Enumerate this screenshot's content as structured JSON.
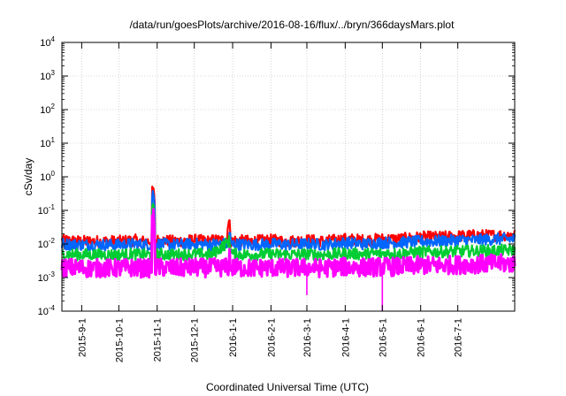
{
  "chart_data": {
    "type": "line",
    "title": "/data/run/goesPlots/archive/2016-08-16/flux/../bryn/366daysMars.plot",
    "xlabel": "Coordinated Universal Time (UTC)",
    "ylabel": "cSv/day",
    "yscale": "log",
    "ylim": [
      0.0001,
      10000
    ],
    "xlim": [
      "2015-08-16",
      "2016-08-16"
    ],
    "grid": true,
    "x_tick_labels": [
      "2015-9-1",
      "2015-10-1",
      "2015-11-1",
      "2015-12-1",
      "2016-1-1",
      "2016-2-1",
      "2016-3-1",
      "2016-4-1",
      "2016-5-1",
      "2016-6-1",
      "2016-7-1"
    ],
    "y_tick_labels": [
      {
        "base": "10",
        "exp": "4"
      },
      {
        "base": "10",
        "exp": "3"
      },
      {
        "base": "10",
        "exp": "2"
      },
      {
        "base": "10",
        "exp": "1"
      },
      {
        "base": "10",
        "exp": "0"
      },
      {
        "base": "10",
        "exp": "-1"
      },
      {
        "base": "10",
        "exp": "-2"
      },
      {
        "base": "10",
        "exp": "-3"
      },
      {
        "base": "10",
        "exp": "-4"
      }
    ],
    "x": [
      "2015-08-16",
      "2015-09-01",
      "2015-09-15",
      "2015-10-01",
      "2015-10-15",
      "2015-10-29",
      "2015-11-01",
      "2015-11-15",
      "2015-12-01",
      "2015-12-15",
      "2015-12-29",
      "2016-01-01",
      "2016-01-15",
      "2016-02-01",
      "2016-02-15",
      "2016-03-01",
      "2016-03-15",
      "2016-04-01",
      "2016-04-15",
      "2016-05-01",
      "2016-05-15",
      "2016-06-01",
      "2016-06-15",
      "2016-07-01",
      "2016-07-15",
      "2016-08-01",
      "2016-08-16"
    ],
    "series": [
      {
        "color": "#ff0000",
        "values": [
          0.013,
          0.012,
          0.012,
          0.012,
          0.013,
          0.45,
          0.013,
          0.012,
          0.013,
          0.012,
          0.045,
          0.013,
          0.012,
          0.013,
          0.012,
          0.013,
          0.012,
          0.014,
          0.013,
          0.014,
          0.014,
          0.016,
          0.016,
          0.017,
          0.018,
          0.018,
          0.019
        ]
      },
      {
        "color": "#0066ff",
        "values": [
          0.01,
          0.0095,
          0.0095,
          0.0095,
          0.01,
          0.35,
          0.01,
          0.0095,
          0.01,
          0.0095,
          0.03,
          0.01,
          0.0095,
          0.01,
          0.0095,
          0.01,
          0.0095,
          0.011,
          0.01,
          0.011,
          0.011,
          0.012,
          0.012,
          0.013,
          0.013,
          0.014,
          0.014
        ]
      },
      {
        "color": "#00cc33",
        "values": [
          0.005,
          0.0048,
          0.0048,
          0.0048,
          0.005,
          0.12,
          0.005,
          0.0048,
          0.005,
          0.0048,
          0.012,
          0.005,
          0.0048,
          0.005,
          0.0048,
          0.005,
          0.0048,
          0.0052,
          0.005,
          0.0052,
          0.0052,
          0.0058,
          0.0058,
          0.006,
          0.0062,
          0.0064,
          0.0065
        ]
      },
      {
        "color": "#ff00ff",
        "values": [
          0.002,
          0.0019,
          0.0019,
          0.0019,
          0.002,
          0.06,
          0.002,
          0.0019,
          0.002,
          0.0019,
          0.006,
          0.002,
          0.0019,
          0.002,
          0.0019,
          0.002,
          0.0019,
          0.0021,
          0.002,
          0.0021,
          0.0021,
          0.0023,
          0.0023,
          0.0024,
          0.0025,
          0.0026,
          0.0026
        ]
      }
    ],
    "dips": [
      {
        "series": "#ff00ff",
        "x": "2016-03-01",
        "value": 0.0003
      },
      {
        "series": "#ff00ff",
        "x": "2016-05-01",
        "value": 0.0001
      }
    ]
  }
}
